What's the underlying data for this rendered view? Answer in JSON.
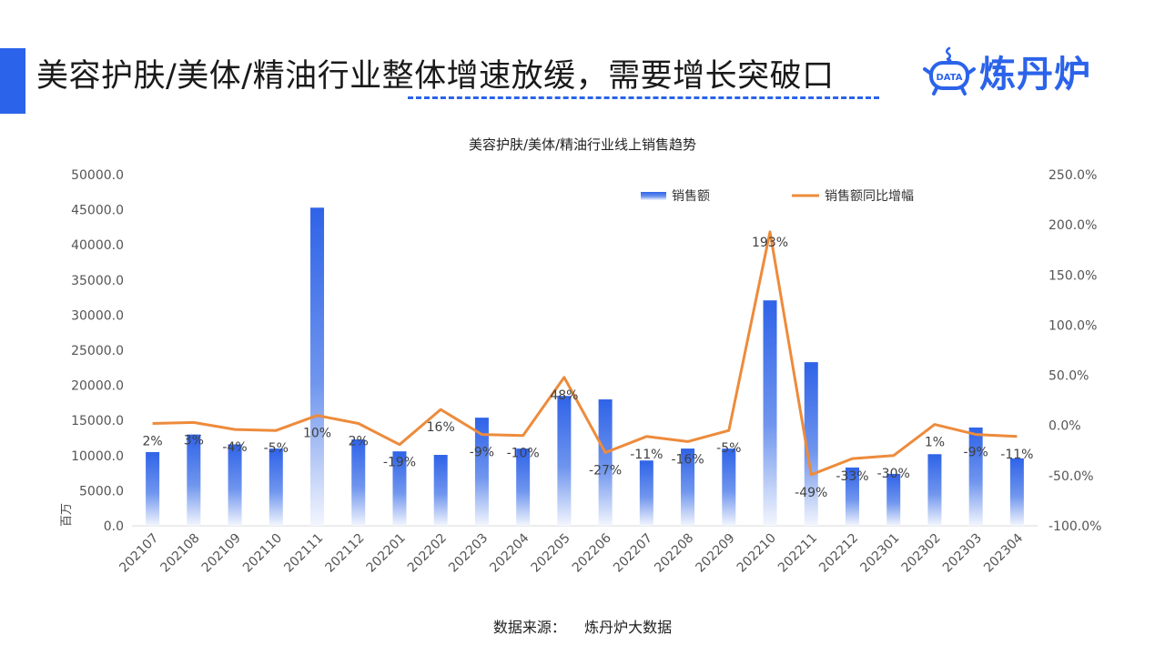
{
  "header": {
    "title": "美容护肤/美体/精油行业整体增速放缓，需要增长突破口",
    "brand_badge": "DATA",
    "brand_name": "炼丹炉"
  },
  "footer": {
    "source_label": "数据来源：",
    "source_name": "炼丹炉大数据"
  },
  "colors": {
    "accent": "#2b63ea",
    "bar": "#3a6de8",
    "line": "#ed8b3c"
  },
  "chart_data": {
    "type": "bar",
    "title": "美容护肤/美体/精油行业线上销售趋势",
    "y_unit_label": "百万",
    "categories": [
      "202107",
      "202108",
      "202109",
      "202110",
      "202111",
      "202112",
      "202201",
      "202202",
      "202203",
      "202204",
      "202205",
      "202206",
      "202207",
      "202208",
      "202209",
      "202210",
      "202211",
      "202212",
      "202301",
      "202302",
      "202303",
      "202304"
    ],
    "series": [
      {
        "name": "销售额",
        "type": "bar",
        "axis": "left",
        "values": [
          10500,
          13000,
          11600,
          11000,
          45300,
          12300,
          10600,
          10100,
          15400,
          11000,
          18500,
          18000,
          9300,
          11000,
          11000,
          32100,
          23300,
          8300,
          7400,
          10200,
          14000,
          9600
        ]
      },
      {
        "name": "销售额同比增幅",
        "type": "line",
        "axis": "right",
        "values": [
          2,
          3,
          -4,
          -5,
          10,
          2,
          -19,
          16,
          -9,
          -10,
          48,
          -27,
          -11,
          -16,
          -5,
          193,
          -49,
          -33,
          -30,
          1,
          -9,
          -11
        ],
        "labels": [
          "2%",
          "3%",
          "-4%",
          "-5%",
          "10%",
          "2%",
          "-19%",
          "16%",
          "-9%",
          "-10%",
          "48%",
          "-27%",
          "-11%",
          "-16%",
          "-5%",
          "193%",
          "-49%",
          "-33%",
          "-30%",
          "1%",
          "-9%",
          "-11%"
        ]
      }
    ],
    "y_left": {
      "min": 0,
      "max": 50000,
      "ticks": [
        "0.0",
        "5000.0",
        "10000.0",
        "15000.0",
        "20000.0",
        "25000.0",
        "30000.0",
        "35000.0",
        "40000.0",
        "45000.0",
        "50000.0"
      ]
    },
    "y_right": {
      "min": -100,
      "max": 250,
      "ticks": [
        "-100.0%",
        "-50.0%",
        "0.0%",
        "50.0%",
        "100.0%",
        "150.0%",
        "200.0%",
        "250.0%"
      ]
    },
    "grid": false,
    "legend_position": "top-right"
  }
}
